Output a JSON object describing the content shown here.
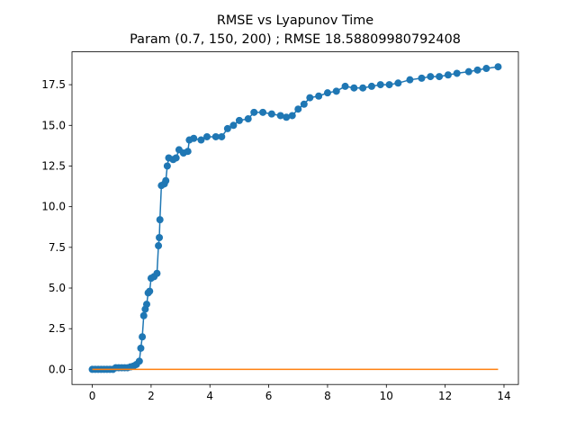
{
  "chart_data": {
    "type": "line",
    "title": "RMSE vs Lyapunov Time",
    "subtitle": "Param (0.7, 150, 200) ; RMSE 18.58809980792408",
    "xlim": [
      -0.69,
      14.49
    ],
    "ylim": [
      -0.93,
      19.52
    ],
    "xticks": [
      0,
      2,
      4,
      6,
      8,
      10,
      12,
      14
    ],
    "yticks": [
      {
        "value": 0,
        "label": "0.0"
      },
      2.5,
      {
        "value": 5,
        "label": "5.0"
      },
      7.5,
      {
        "value": 10,
        "label": "10.0"
      },
      12.5,
      {
        "value": 15,
        "label": "15.0"
      },
      17.5
    ],
    "series": [
      {
        "color": "#1f77b4",
        "markers": true,
        "x": [
          0,
          0.1,
          0.2,
          0.3,
          0.4,
          0.5,
          0.6,
          0.7,
          0.8,
          0.9,
          1.0,
          1.1,
          1.2,
          1.3,
          1.4,
          1.5,
          1.6,
          1.65,
          1.7,
          1.75,
          1.8,
          1.85,
          1.9,
          1.95,
          2.0,
          2.1,
          2.2,
          2.25,
          2.28,
          2.3,
          2.35,
          2.45,
          2.5,
          2.55,
          2.6,
          2.75,
          2.85,
          2.95,
          3.1,
          3.25,
          3.3,
          3.45,
          3.7,
          3.9,
          4.2,
          4.4,
          4.6,
          4.8,
          5.0,
          5.3,
          5.5,
          5.8,
          6.1,
          6.4,
          6.6,
          6.8,
          7.0,
          7.2,
          7.4,
          7.7,
          8.0,
          8.3,
          8.6,
          8.9,
          9.2,
          9.5,
          9.8,
          10.1,
          10.4,
          10.8,
          11.2,
          11.5,
          11.8,
          12.1,
          12.4,
          12.8,
          13.1,
          13.4,
          13.8
        ],
        "values": [
          0,
          0,
          0,
          0,
          0,
          0,
          0,
          0,
          0.1,
          0.1,
          0.1,
          0.1,
          0.1,
          0.15,
          0.2,
          0.3,
          0.5,
          1.3,
          2.0,
          3.3,
          3.7,
          4.0,
          4.7,
          4.8,
          5.6,
          5.7,
          5.9,
          7.6,
          8.1,
          9.2,
          11.3,
          11.4,
          11.6,
          12.5,
          13.0,
          12.9,
          13.0,
          13.5,
          13.3,
          13.4,
          14.1,
          14.2,
          14.1,
          14.3,
          14.3,
          14.3,
          14.8,
          15.0,
          15.3,
          15.4,
          15.8,
          15.8,
          15.7,
          15.6,
          15.5,
          15.6,
          16.0,
          16.3,
          16.7,
          16.8,
          17.0,
          17.1,
          17.4,
          17.3,
          17.3,
          17.4,
          17.5,
          17.5,
          17.6,
          17.8,
          17.9,
          18.0,
          18.0,
          18.1,
          18.2,
          18.3,
          18.4,
          18.5,
          18.6
        ]
      },
      {
        "color": "#ff7f0e",
        "markers": false,
        "x": [
          0,
          13.8
        ],
        "values": [
          0,
          0
        ]
      }
    ]
  }
}
